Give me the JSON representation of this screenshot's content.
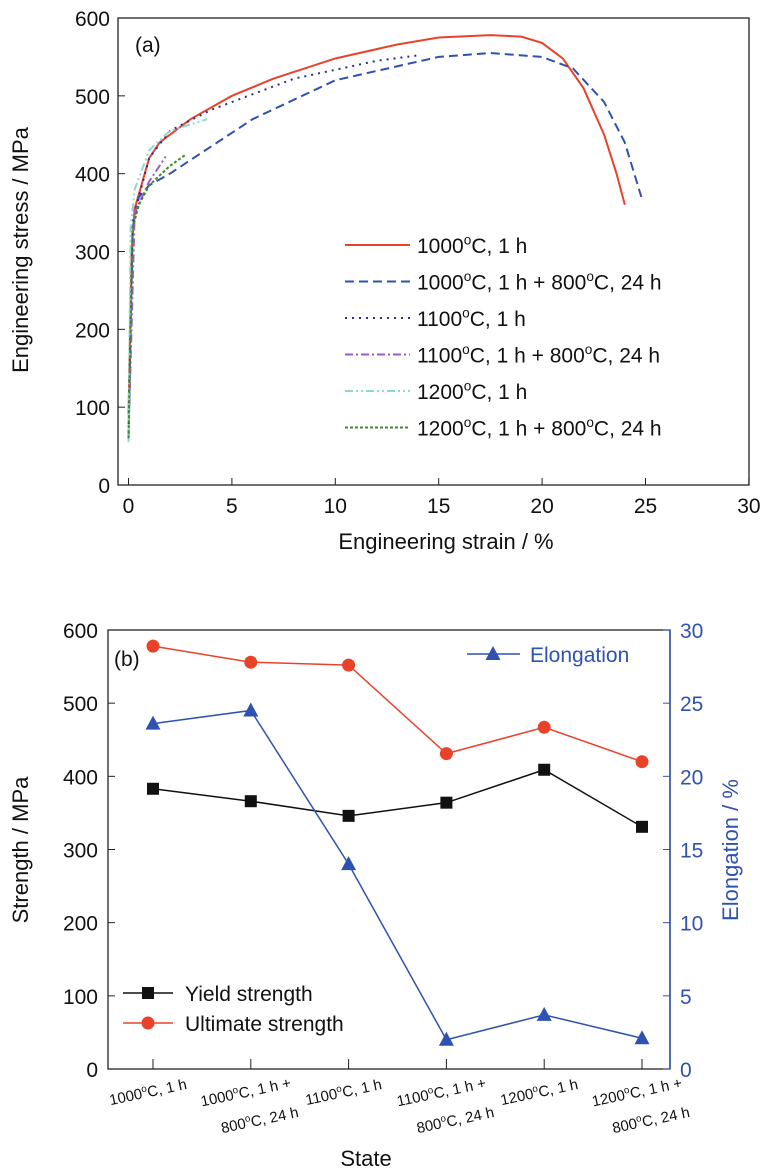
{
  "chart_data": [
    {
      "type": "line",
      "panel_label": "(a)",
      "xlabel": "Engineering strain / %",
      "ylabel": "Engineering stress / MPa",
      "xlim": [
        0,
        30
      ],
      "ylim": [
        0,
        600
      ],
      "xticks": [
        0,
        5,
        10,
        15,
        20,
        25,
        30
      ],
      "yticks": [
        0,
        100,
        200,
        300,
        400,
        500,
        600
      ],
      "legend_position": "right",
      "series": [
        {
          "name": "1000°C, 1 h",
          "label_main": "1000",
          "label_rest": "C, 1 h",
          "color": "#e8432a",
          "dash": "",
          "points": [
            [
              0,
              90
            ],
            [
              0.15,
              300
            ],
            [
              0.3,
              355
            ],
            [
              1,
              420
            ],
            [
              1.5,
              440
            ],
            [
              3,
              470
            ],
            [
              5,
              500
            ],
            [
              7,
              522
            ],
            [
              10,
              548
            ],
            [
              13,
              566
            ],
            [
              15,
              575
            ],
            [
              17.5,
              578
            ],
            [
              19,
              576
            ],
            [
              20,
              568
            ],
            [
              21,
              548
            ],
            [
              22,
              510
            ],
            [
              23,
              450
            ],
            [
              23.6,
              400
            ],
            [
              24,
              360
            ]
          ]
        },
        {
          "name": "1000°C, 1 h + 800°C, 24 h",
          "label_main": "1000",
          "label_rest": "C, 1 h + 800",
          "label_rest2": "C, 24 h",
          "color": "#2f52b0",
          "dash": "9,5",
          "points": [
            [
              0,
              60
            ],
            [
              0.2,
              330
            ],
            [
              0.5,
              370
            ],
            [
              1,
              385
            ],
            [
              2,
              400
            ],
            [
              4,
              435
            ],
            [
              6,
              470
            ],
            [
              10,
              520
            ],
            [
              15,
              550
            ],
            [
              17.5,
              555
            ],
            [
              20,
              550
            ],
            [
              21.5,
              535
            ],
            [
              23,
              492
            ],
            [
              24,
              440
            ],
            [
              24.8,
              370
            ]
          ]
        },
        {
          "name": "1100°C, 1 h",
          "label_main": "1100",
          "label_rest": "C, 1 h",
          "color": "#2b2f8f",
          "dash": "2,5",
          "points": [
            [
              0,
              60
            ],
            [
              0.2,
              340
            ],
            [
              1,
              420
            ],
            [
              2,
              455
            ],
            [
              4,
              482
            ],
            [
              8,
              522
            ],
            [
              12,
              545
            ],
            [
              14,
              552
            ]
          ]
        },
        {
          "name": "1100°C, 1 h + 800°C, 24 h",
          "label_main": "1100",
          "label_rest": "C, 1 h + 800",
          "label_rest2": "C, 24 h",
          "color": "#9b5bc9",
          "dash": "8,3,2,3",
          "points": [
            [
              0,
              60
            ],
            [
              0.3,
              350
            ],
            [
              1,
              390
            ],
            [
              1.8,
              422
            ]
          ]
        },
        {
          "name": "1200°C, 1 h",
          "label_main": "1200",
          "label_rest": "C, 1 h",
          "color": "#8fd8d0",
          "dash": "8,3,2,3,2,3",
          "points": [
            [
              0,
              55
            ],
            [
              0.1,
              330
            ],
            [
              0.3,
              380
            ],
            [
              1,
              430
            ],
            [
              2,
              455
            ],
            [
              3.8,
              470
            ]
          ]
        },
        {
          "name": "1200°C, 1 h + 800°C, 24 h",
          "label_main": "1200",
          "label_rest": "C, 1 h + 800",
          "label_rest2": "C, 24 h",
          "color": "#3f8a2a",
          "dash": "3,2",
          "points": [
            [
              0,
              60
            ],
            [
              0.2,
              330
            ],
            [
              0.5,
              360
            ],
            [
              1,
              385
            ],
            [
              2,
              410
            ],
            [
              2.8,
              425
            ]
          ]
        }
      ]
    },
    {
      "type": "line",
      "panel_label": "(b)",
      "xlabel": "State",
      "ylabel": "Strength / MPa",
      "y2label": "Elongation / %",
      "ylim": [
        0,
        600
      ],
      "y2lim": [
        0,
        30
      ],
      "yticks": [
        0,
        100,
        200,
        300,
        400,
        500,
        600
      ],
      "y2ticks": [
        0,
        5,
        10,
        15,
        20,
        25,
        30
      ],
      "categories": [
        [
          "1000°C, 1 h"
        ],
        [
          "1000°C, 1 h +",
          "800°C, 24 h"
        ],
        [
          "1100°C, 1 h"
        ],
        [
          "1100°C, 1 h +",
          "800°C, 24 h"
        ],
        [
          "1200°C, 1 h"
        ],
        [
          "1200°C, 1 h +",
          "800°C, 24 h"
        ]
      ],
      "series": [
        {
          "name": "Yield strength",
          "axis": "left",
          "color": "#111111",
          "marker": "square",
          "values": [
            383,
            366,
            346,
            364,
            409,
            331
          ]
        },
        {
          "name": "Ultimate strength",
          "axis": "left",
          "color": "#e8432a",
          "marker": "circle",
          "values": [
            578,
            556,
            552,
            431,
            467,
            420
          ]
        },
        {
          "name": "Elongation",
          "axis": "right",
          "color": "#2f52b0",
          "marker": "triangle",
          "values": [
            23.6,
            24.5,
            14.0,
            2.0,
            3.7,
            2.1
          ]
        }
      ]
    }
  ]
}
